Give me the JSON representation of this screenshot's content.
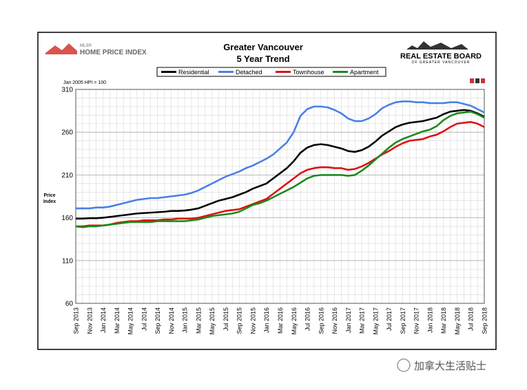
{
  "chart_data": {
    "type": "line",
    "title": "Greater Vancouver",
    "subtitle": "5 Year Trend",
    "note": "Jan 2005 HPI = 100",
    "ylabel": [
      "Price",
      "Index"
    ],
    "logo_left": [
      "MLS®",
      "HOME PRICE INDEX"
    ],
    "logo_right": [
      "REAL ESTATE BOARD",
      "OF GREATER VANCOUVER"
    ],
    "watermark": "加拿大生活贴士",
    "categories": [
      "Sep 2013",
      null,
      "Nov 2013",
      null,
      "Jan 2014",
      null,
      "Mar 2014",
      null,
      "May 2014",
      null,
      "Jul 2014",
      null,
      "Sep 2014",
      null,
      "Nov 2014",
      null,
      "Jan 2015",
      null,
      "Mar 2015",
      null,
      "May 2015",
      null,
      "Jul 2015",
      null,
      "Sep 2015",
      null,
      "Nov 2015",
      null,
      "Jan 2016",
      null,
      "Mar 2016",
      null,
      "May 2016",
      null,
      "Jul 2016",
      null,
      "Sep 2016",
      null,
      "Nov 2016",
      null,
      "Jan 2017",
      null,
      "Mar 2017",
      null,
      "May 2017",
      null,
      "Jul 2017",
      null,
      "Sep 2017",
      null,
      "Nov 2017",
      null,
      "Jan 2018",
      null,
      "Mar 2018",
      null,
      "May 2018",
      null,
      "Jul 2018",
      null,
      "Sep 2018"
    ],
    "series": [
      {
        "name": "Residential",
        "color": "#000000",
        "values": [
          159,
          159,
          159.5,
          159.5,
          160,
          161,
          162,
          163,
          164,
          165,
          165.5,
          166,
          166.5,
          167,
          168,
          168,
          168.5,
          169.5,
          171,
          174,
          177,
          180,
          182,
          184,
          187,
          190,
          194,
          197,
          200,
          206,
          212,
          218,
          226,
          236,
          242,
          245,
          246,
          245,
          243,
          241,
          238,
          237,
          239,
          243,
          249,
          256,
          261,
          266,
          269,
          271,
          272,
          273,
          275,
          277,
          281,
          284,
          285,
          286,
          285,
          282,
          278
        ]
      },
      {
        "name": "Detached",
        "color": "#4a7fe8",
        "values": [
          171,
          171,
          171,
          172,
          172,
          173,
          175,
          177,
          179,
          181,
          182,
          183,
          183,
          184,
          185,
          186,
          187,
          189,
          192,
          196,
          200,
          204,
          208,
          211,
          214,
          218,
          221,
          225,
          229,
          234,
          241,
          248,
          260,
          279,
          287,
          290,
          290,
          289,
          286,
          282,
          276,
          273,
          273,
          276,
          281,
          288,
          292,
          295,
          296,
          296,
          295,
          295,
          294,
          294,
          294,
          295,
          295,
          293,
          291,
          287,
          283
        ]
      },
      {
        "name": "Townhouse",
        "color": "#e01010",
        "values": [
          150,
          150,
          151,
          151,
          151,
          152,
          154,
          155,
          156,
          156,
          157,
          157,
          157,
          158,
          158,
          159,
          159,
          159,
          160,
          162,
          164,
          166,
          168,
          169,
          170,
          173,
          176,
          179,
          182,
          188,
          194,
          200,
          206,
          212,
          216,
          218,
          219,
          219,
          218,
          218,
          216,
          217,
          220,
          224,
          229,
          234,
          238,
          243,
          247,
          250,
          251,
          252,
          255,
          257,
          261,
          266,
          270,
          271,
          272,
          270,
          266
        ]
      },
      {
        "name": "Apartment",
        "color": "#1a8a1a",
        "values": [
          150,
          149,
          150,
          150,
          151,
          152,
          153,
          154,
          155,
          155,
          155,
          155,
          156,
          156,
          156,
          156,
          156,
          157,
          158,
          160,
          162,
          163,
          164,
          165,
          167,
          171,
          175,
          177,
          180,
          184,
          188,
          192,
          196,
          201,
          206,
          209,
          210,
          210,
          210,
          210,
          209,
          210,
          215,
          221,
          228,
          235,
          242,
          248,
          252,
          255,
          258,
          261,
          263,
          267,
          274,
          279,
          282,
          283,
          284,
          281,
          277
        ]
      }
    ],
    "ylim": [
      60,
      310
    ],
    "yticks": [
      60,
      110,
      160,
      210,
      260,
      310
    ],
    "grid": true
  }
}
